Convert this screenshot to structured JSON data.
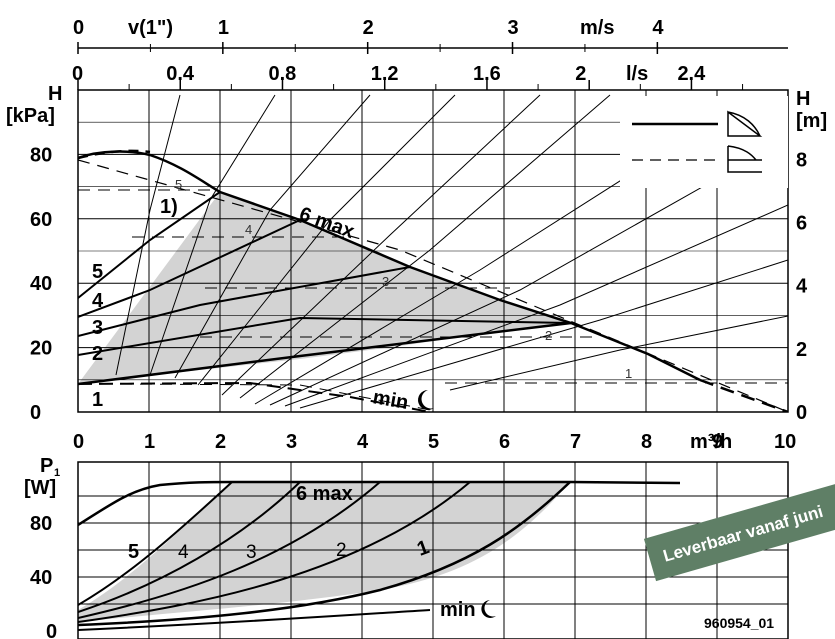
{
  "chart_data": [
    {
      "type": "line",
      "panel": "head",
      "ylabel_left": "H\n[kPa]",
      "ylabel_right": "H\n[m]",
      "xlabel": "m³/h",
      "x_ticks": [
        "0",
        "1",
        "2",
        "3",
        "4",
        "5",
        "6",
        "7",
        "8",
        "9",
        "10"
      ],
      "y_left_ticks": [
        "0",
        "20",
        "40",
        "60",
        "80"
      ],
      "y_right_ticks": [
        "0",
        "2",
        "4",
        "6",
        "8"
      ],
      "top_axis_ls": {
        "ticks": [
          "0",
          "0.4",
          "0.8",
          "1.2",
          "1.6",
          "2",
          "2.4"
        ],
        "unit": "l/s"
      },
      "top_axis_ms": {
        "prefix": "v(1\")",
        "ticks": [
          "0",
          "1",
          "2",
          "3",
          "4"
        ],
        "unit": "m/s"
      },
      "xlim": [
        0,
        10
      ],
      "ylim_kpa": [
        0,
        100
      ],
      "grid": true,
      "series_labels": [
        "1",
        "2",
        "3",
        "4",
        "5",
        "6 max",
        "min"
      ],
      "dashed_labels": [
        "1",
        "2",
        "3",
        "4",
        "5"
      ],
      "note_label": "1)",
      "series": [
        {
          "name": "6 max",
          "x": [
            0,
            0.7,
            1,
            2,
            3,
            4,
            5,
            6,
            7,
            8,
            9,
            10
          ],
          "y": [
            79,
            82,
            81,
            72,
            62,
            53,
            44,
            36,
            28,
            20,
            10,
            0
          ]
        },
        {
          "name": "5",
          "x": [
            0,
            1,
            2,
            2.2
          ],
          "y": [
            36,
            52,
            67,
            72
          ]
        },
        {
          "name": "4",
          "x": [
            0,
            1,
            2,
            3,
            3.2
          ],
          "y": [
            30,
            39,
            49,
            58,
            60
          ]
        },
        {
          "name": "3",
          "x": [
            0,
            1,
            2,
            3,
            4,
            4.7
          ],
          "y": [
            23,
            28,
            33,
            38,
            43,
            47
          ]
        },
        {
          "name": "2",
          "x": [
            0,
            1,
            2,
            3,
            4,
            5,
            6,
            6.9
          ],
          "y": [
            17,
            20,
            24,
            28,
            32,
            36,
            39,
            43
          ]
        },
        {
          "name": "1",
          "x": [
            0,
            1,
            2,
            3,
            4,
            5,
            6,
            7
          ],
          "y": [
            10,
            13,
            16,
            19,
            22,
            24,
            27,
            29
          ]
        },
        {
          "name": "min",
          "x": [
            0,
            1,
            2,
            3,
            4,
            5
          ],
          "y": [
            10,
            10,
            9,
            7,
            5,
            2
          ]
        }
      ],
      "legend": [
        "solid: constant-curve",
        "dashed: constant-pressure"
      ]
    },
    {
      "type": "area",
      "panel": "power",
      "ylabel": "P1\n[W]",
      "y_ticks": [
        "0",
        "40",
        "80"
      ],
      "x_ticks": [
        "0",
        "1",
        "2",
        "3",
        "4",
        "5",
        "6",
        "7",
        "8",
        "9",
        "10"
      ],
      "series_labels": [
        "5",
        "4",
        "3",
        "2",
        "1",
        "6 max",
        "min"
      ],
      "ylim": [
        0,
        105
      ],
      "series": [
        {
          "name": "6 max",
          "x": [
            0,
            1,
            2,
            3,
            4,
            5,
            6,
            7,
            8.5
          ],
          "y": [
            76,
            90,
            94,
            94,
            94,
            94,
            93,
            93,
            93
          ]
        },
        {
          "name": "1",
          "x": [
            0,
            1,
            2,
            3,
            4,
            5,
            6,
            7
          ],
          "y": [
            7,
            9,
            14,
            22,
            34,
            48,
            64,
            93
          ]
        }
      ]
    }
  ],
  "figure_code": "960954_01",
  "banner_text": "Leverbaar vanaf juni"
}
